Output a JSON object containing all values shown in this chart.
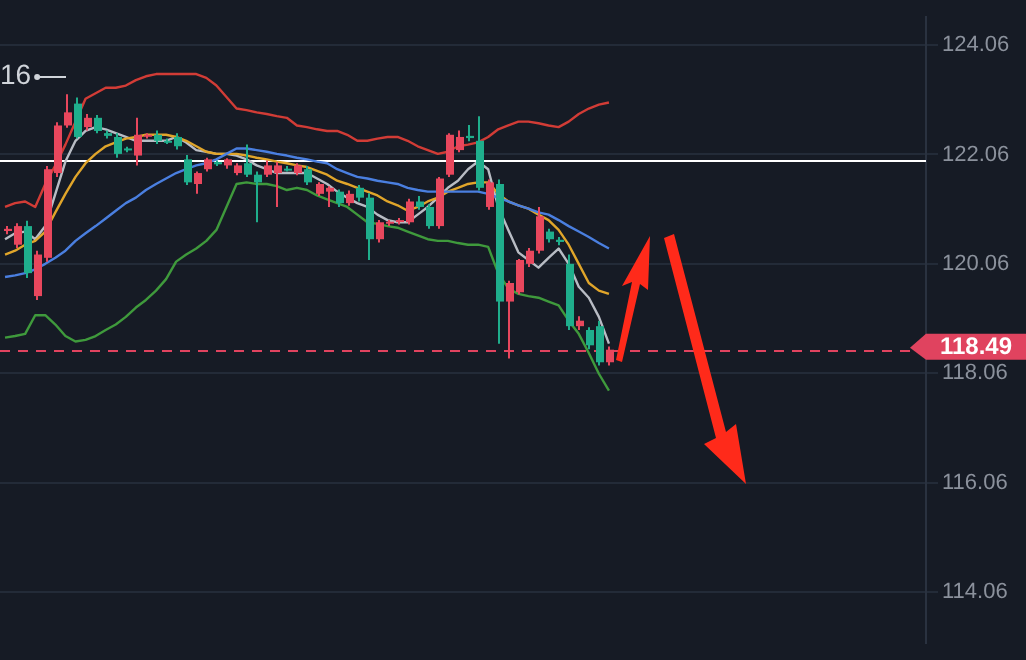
{
  "chart_data": {
    "type": "candlestick",
    "categories": [
      null,
      null,
      null,
      null,
      null,
      null,
      null,
      null,
      null,
      null,
      null,
      null,
      null,
      null,
      null,
      null,
      null,
      null,
      null,
      null,
      null,
      null,
      null,
      null,
      null,
      null,
      null,
      null,
      null,
      null,
      null,
      null,
      null,
      null,
      null,
      null,
      null,
      null,
      null,
      null,
      null,
      null,
      null,
      null,
      null,
      null,
      null,
      null,
      null,
      null,
      null,
      null,
      null,
      null,
      null,
      null,
      null,
      null,
      null,
      null,
      null,
      null,
      null,
      null,
      null,
      null,
      null,
      null,
      null,
      null,
      null,
      null,
      null,
      null,
      null,
      null,
      null,
      null,
      null,
      null,
      null,
      null,
      null,
      null,
      null,
      null,
      null,
      null,
      null,
      null,
      null,
      null
    ],
    "ohlc": [
      [
        120.66,
        120.75,
        120.6,
        120.7
      ],
      [
        120.41,
        120.8,
        120.35,
        120.75
      ],
      [
        120.75,
        120.85,
        119.8,
        119.89
      ],
      [
        119.47,
        120.3,
        119.4,
        120.23
      ],
      [
        120.17,
        121.85,
        120.1,
        121.79
      ],
      [
        121.72,
        122.65,
        121.65,
        122.59
      ],
      [
        122.59,
        123.16,
        122.55,
        122.83
      ],
      [
        122.99,
        123.1,
        122.35,
        122.38
      ],
      [
        122.56,
        122.8,
        122.5,
        122.73
      ],
      [
        122.73,
        122.78,
        122.45,
        122.49
      ],
      [
        122.45,
        122.5,
        122.35,
        122.4
      ],
      [
        122.38,
        122.45,
        122.0,
        122.07
      ],
      [
        122.17,
        122.2,
        122.1,
        122.14
      ],
      [
        122.04,
        122.73,
        121.86,
        122.42
      ],
      [
        122.4,
        122.45,
        122.35,
        122.42
      ],
      [
        122.42,
        122.5,
        122.25,
        122.31
      ],
      [
        122.31,
        122.35,
        122.25,
        122.28
      ],
      [
        122.38,
        122.45,
        122.15,
        122.21
      ],
      [
        121.97,
        122.05,
        121.5,
        121.55
      ],
      [
        121.52,
        121.75,
        121.34,
        121.72
      ],
      [
        121.79,
        122.0,
        121.75,
        121.97
      ],
      [
        121.92,
        121.95,
        121.85,
        121.88
      ],
      [
        121.86,
        121.99,
        121.8,
        121.97
      ],
      [
        121.72,
        121.9,
        121.68,
        121.86
      ],
      [
        121.9,
        122.24,
        121.65,
        121.69
      ],
      [
        121.69,
        121.75,
        120.82,
        121.55
      ],
      [
        121.69,
        121.95,
        121.65,
        121.86
      ],
      [
        121.72,
        121.92,
        121.1,
        121.86
      ],
      [
        121.8,
        121.85,
        121.75,
        121.78
      ],
      [
        121.72,
        121.9,
        121.68,
        121.86
      ],
      [
        121.79,
        121.85,
        121.5,
        121.55
      ],
      [
        121.34,
        121.55,
        121.3,
        121.52
      ],
      [
        121.38,
        121.48,
        121.1,
        121.45
      ],
      [
        121.38,
        121.42,
        121.1,
        121.17
      ],
      [
        121.17,
        121.4,
        121.12,
        121.34
      ],
      [
        121.45,
        121.5,
        121.2,
        121.27
      ],
      [
        121.27,
        121.35,
        120.13,
        120.51
      ],
      [
        120.51,
        120.86,
        120.45,
        120.82
      ],
      [
        120.8,
        120.86,
        120.75,
        120.83
      ],
      [
        120.84,
        120.9,
        120.78,
        120.86
      ],
      [
        120.82,
        121.25,
        120.78,
        121.2
      ],
      [
        121.2,
        121.3,
        121.05,
        121.1
      ],
      [
        121.1,
        121.15,
        120.7,
        120.75
      ],
      [
        120.75,
        121.65,
        120.7,
        121.62
      ],
      [
        121.69,
        122.45,
        121.65,
        122.42
      ],
      [
        122.14,
        122.5,
        122.1,
        122.38
      ],
      [
        122.4,
        122.6,
        122.3,
        122.36
      ],
      [
        122.31,
        122.76,
        121.4,
        121.45
      ],
      [
        121.1,
        121.6,
        121.05,
        121.55
      ],
      [
        121.52,
        121.6,
        118.6,
        119.37
      ],
      [
        119.37,
        119.75,
        118.33,
        119.71
      ],
      [
        119.54,
        120.15,
        119.5,
        120.13
      ],
      [
        120.06,
        120.35,
        120.0,
        120.3
      ],
      [
        120.3,
        121.1,
        120.25,
        120.93
      ],
      [
        120.65,
        120.7,
        120.45,
        120.51
      ],
      [
        120.5,
        120.55,
        120.4,
        120.46
      ],
      [
        120.06,
        120.23,
        118.85,
        118.92
      ],
      [
        118.92,
        119.1,
        118.85,
        119.02
      ],
      [
        118.85,
        118.9,
        118.5,
        118.57
      ],
      [
        118.92,
        119.02,
        118.2,
        118.26
      ],
      [
        118.26,
        118.55,
        118.2,
        118.49
      ],
      null,
      null,
      null,
      null,
      null,
      null,
      null,
      null,
      null,
      null,
      null,
      null,
      null,
      null,
      null,
      null,
      null,
      null,
      null,
      null,
      null,
      null,
      null,
      null,
      null,
      null,
      null,
      null,
      null,
      null,
      null
    ],
    "series": [
      {
        "type": "line",
        "color": "#d23c36",
        "values": [
          121.1,
          121.17,
          121.2,
          121.1,
          121.52,
          121.86,
          122.24,
          122.66,
          123.08,
          123.18,
          123.28,
          123.28,
          123.32,
          123.42,
          123.49,
          123.53,
          123.53,
          123.53,
          123.53,
          123.53,
          123.46,
          123.32,
          123.11,
          122.9,
          122.87,
          122.83,
          122.8,
          122.76,
          122.73,
          122.59,
          122.56,
          122.52,
          122.49,
          122.49,
          122.42,
          122.31,
          122.31,
          122.35,
          122.38,
          122.38,
          122.31,
          122.21,
          122.14,
          122.07,
          122.11,
          122.21,
          122.24,
          122.28,
          122.38,
          122.52,
          122.59,
          122.66,
          122.66,
          122.63,
          122.59,
          122.56,
          122.66,
          122.8,
          122.9,
          122.97,
          123.01,
          null,
          null,
          null,
          null,
          null,
          null,
          null,
          null,
          null,
          null,
          null,
          null,
          null,
          null,
          null,
          null,
          null,
          null,
          null,
          null,
          null,
          null,
          null,
          null,
          null,
          null,
          null,
          null,
          null,
          null,
          null
        ]
      },
      {
        "type": "line",
        "color": "#3f9a3c",
        "values": [
          118.71,
          118.74,
          118.78,
          119.12,
          119.12,
          118.95,
          118.74,
          118.64,
          118.67,
          118.74,
          118.85,
          118.95,
          119.09,
          119.26,
          119.4,
          119.57,
          119.78,
          120.1,
          120.23,
          120.34,
          120.48,
          120.68,
          121.1,
          121.52,
          121.55,
          121.52,
          121.52,
          121.48,
          121.41,
          121.45,
          121.41,
          121.31,
          121.24,
          121.17,
          121.1,
          120.96,
          120.82,
          120.79,
          120.75,
          120.72,
          120.65,
          120.58,
          120.51,
          120.48,
          120.48,
          120.44,
          120.41,
          120.41,
          120.37,
          119.89,
          119.61,
          119.51,
          119.47,
          119.44,
          119.37,
          119.3,
          119.02,
          118.78,
          118.43,
          118.05,
          117.74,
          null,
          null,
          null,
          null,
          null,
          null,
          null,
          null,
          null,
          null,
          null,
          null,
          null,
          null,
          null,
          null,
          null,
          null,
          null,
          null,
          null,
          null,
          null,
          null,
          null,
          null,
          null,
          null,
          null,
          null,
          null
        ]
      },
      {
        "type": "line",
        "color": "#4a7fe0",
        "values": [
          119.82,
          119.85,
          119.89,
          119.96,
          120.06,
          120.17,
          120.3,
          120.48,
          120.62,
          120.75,
          120.89,
          121.03,
          121.17,
          121.27,
          121.41,
          121.52,
          121.62,
          121.72,
          121.79,
          121.86,
          121.9,
          121.97,
          122.07,
          122.17,
          122.17,
          122.14,
          122.11,
          122.07,
          122.04,
          122.0,
          121.97,
          121.93,
          121.9,
          121.79,
          121.72,
          121.65,
          121.62,
          121.58,
          121.55,
          121.52,
          121.45,
          121.41,
          121.38,
          121.38,
          121.38,
          121.38,
          121.38,
          121.38,
          121.34,
          121.27,
          121.2,
          121.13,
          121.07,
          121.0,
          120.96,
          120.86,
          120.75,
          120.65,
          120.55,
          120.44,
          120.34,
          null,
          null,
          null,
          null,
          null,
          null,
          null,
          null,
          null,
          null,
          null,
          null,
          null,
          null,
          null,
          null,
          null,
          null,
          null,
          null,
          null,
          null,
          null,
          null,
          null,
          null,
          null,
          null,
          null,
          null,
          null
        ]
      },
      {
        "type": "line",
        "color": "#e0a52a",
        "values": [
          120.23,
          120.3,
          120.41,
          120.48,
          120.65,
          121.0,
          121.34,
          121.65,
          121.9,
          122.07,
          122.21,
          122.28,
          122.35,
          122.38,
          122.42,
          122.42,
          122.42,
          122.38,
          122.31,
          122.21,
          122.11,
          122.07,
          122.07,
          122.07,
          122.04,
          122.0,
          121.97,
          121.93,
          121.9,
          121.86,
          121.83,
          121.76,
          121.69,
          121.58,
          121.52,
          121.45,
          121.38,
          121.31,
          121.2,
          121.13,
          121.03,
          121.1,
          121.2,
          121.27,
          121.38,
          121.45,
          121.52,
          121.55,
          121.55,
          121.34,
          121.2,
          121.13,
          121.07,
          120.96,
          120.86,
          120.68,
          120.41,
          120.06,
          119.71,
          119.57,
          119.51,
          null,
          null,
          null,
          null,
          null,
          null,
          null,
          null,
          null,
          null,
          null,
          null,
          null,
          null,
          null,
          null,
          null,
          null,
          null,
          null,
          null,
          null,
          null,
          null,
          null,
          null,
          null,
          null,
          null,
          null,
          null
        ]
      },
      {
        "type": "line",
        "color": "#b8bcc4",
        "values": [
          120.51,
          120.62,
          120.65,
          120.51,
          120.75,
          121.34,
          121.93,
          122.31,
          122.49,
          122.56,
          122.52,
          122.45,
          122.38,
          122.31,
          122.31,
          122.31,
          122.31,
          122.38,
          122.28,
          122.14,
          122.11,
          122.07,
          122.07,
          122.04,
          121.97,
          121.86,
          121.79,
          121.72,
          121.72,
          121.72,
          121.72,
          121.62,
          121.52,
          121.38,
          121.27,
          121.17,
          121.1,
          120.96,
          120.86,
          120.82,
          120.82,
          120.96,
          121.1,
          121.27,
          121.45,
          121.58,
          121.79,
          121.93,
          121.79,
          121.1,
          120.68,
          120.27,
          120.13,
          119.99,
          120.17,
          120.34,
          120.06,
          119.64,
          119.44,
          119.09,
          118.6,
          null,
          null,
          null,
          null,
          null,
          null,
          null,
          null,
          null,
          null,
          null,
          null,
          null,
          null,
          null,
          null,
          null,
          null,
          null,
          null,
          null,
          null,
          null,
          null,
          null,
          null,
          null,
          null,
          null,
          null,
          null
        ]
      }
    ],
    "ylim": [
      113.13,
      124.57
    ],
    "yticks": [
      114.06,
      116.06,
      118.06,
      120.06,
      122.06,
      124.06
    ],
    "grid": "y",
    "tick_labels": "y",
    "marker": "none",
    "ref_lines": [
      {
        "axis": "y",
        "value": 121.97,
        "color": "#ffffff"
      },
      {
        "axis": "y",
        "value": 118.49,
        "label": "118.49",
        "color": "#e0435f",
        "line_style": "dashed"
      }
    ],
    "annotations": [
      "16"
    ]
  }
}
